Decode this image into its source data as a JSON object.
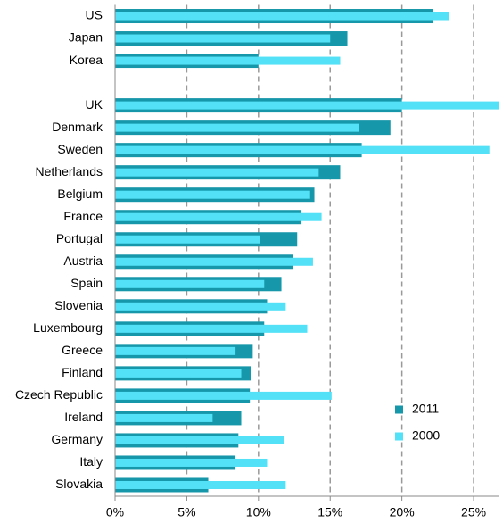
{
  "chart_data": {
    "type": "bar",
    "orientation": "horizontal",
    "categories": [
      "US",
      "Japan",
      "Korea",
      null,
      "UK",
      "Denmark",
      "Sweden",
      "Netherlands",
      "Belgium",
      "France",
      "Portugal",
      "Austria",
      "Spain",
      "Slovenia",
      "Luxembourg",
      "Greece",
      "Finland",
      "Czech Republic",
      "Ireland",
      "Germany",
      "Italy",
      "Slovakia"
    ],
    "series": [
      {
        "name": "2011",
        "color": "#1797aa",
        "values": [
          22.2,
          16.2,
          10.0,
          null,
          20.0,
          19.2,
          17.2,
          15.7,
          13.9,
          13.0,
          12.7,
          12.4,
          11.6,
          10.6,
          10.4,
          9.6,
          9.5,
          9.4,
          8.8,
          8.6,
          8.4,
          6.5
        ]
      },
      {
        "name": "2000",
        "color": "#52e1f7",
        "values": [
          23.3,
          15.0,
          15.7,
          null,
          26.8,
          17.0,
          26.1,
          14.2,
          13.6,
          14.4,
          10.1,
          13.8,
          10.4,
          11.9,
          13.4,
          8.4,
          8.8,
          15.1,
          6.8,
          11.8,
          10.6,
          11.9
        ]
      }
    ],
    "xlim": [
      0,
      26.8
    ],
    "xticks": [
      {
        "value": 0,
        "label": "0%"
      },
      {
        "value": 5,
        "label": "5%"
      },
      {
        "value": 10,
        "label": "10%"
      },
      {
        "value": 15,
        "label": "15%"
      },
      {
        "value": 20,
        "label": "20%"
      },
      {
        "value": 25,
        "label": "25%"
      }
    ],
    "grid": true,
    "legend": "lower right"
  }
}
